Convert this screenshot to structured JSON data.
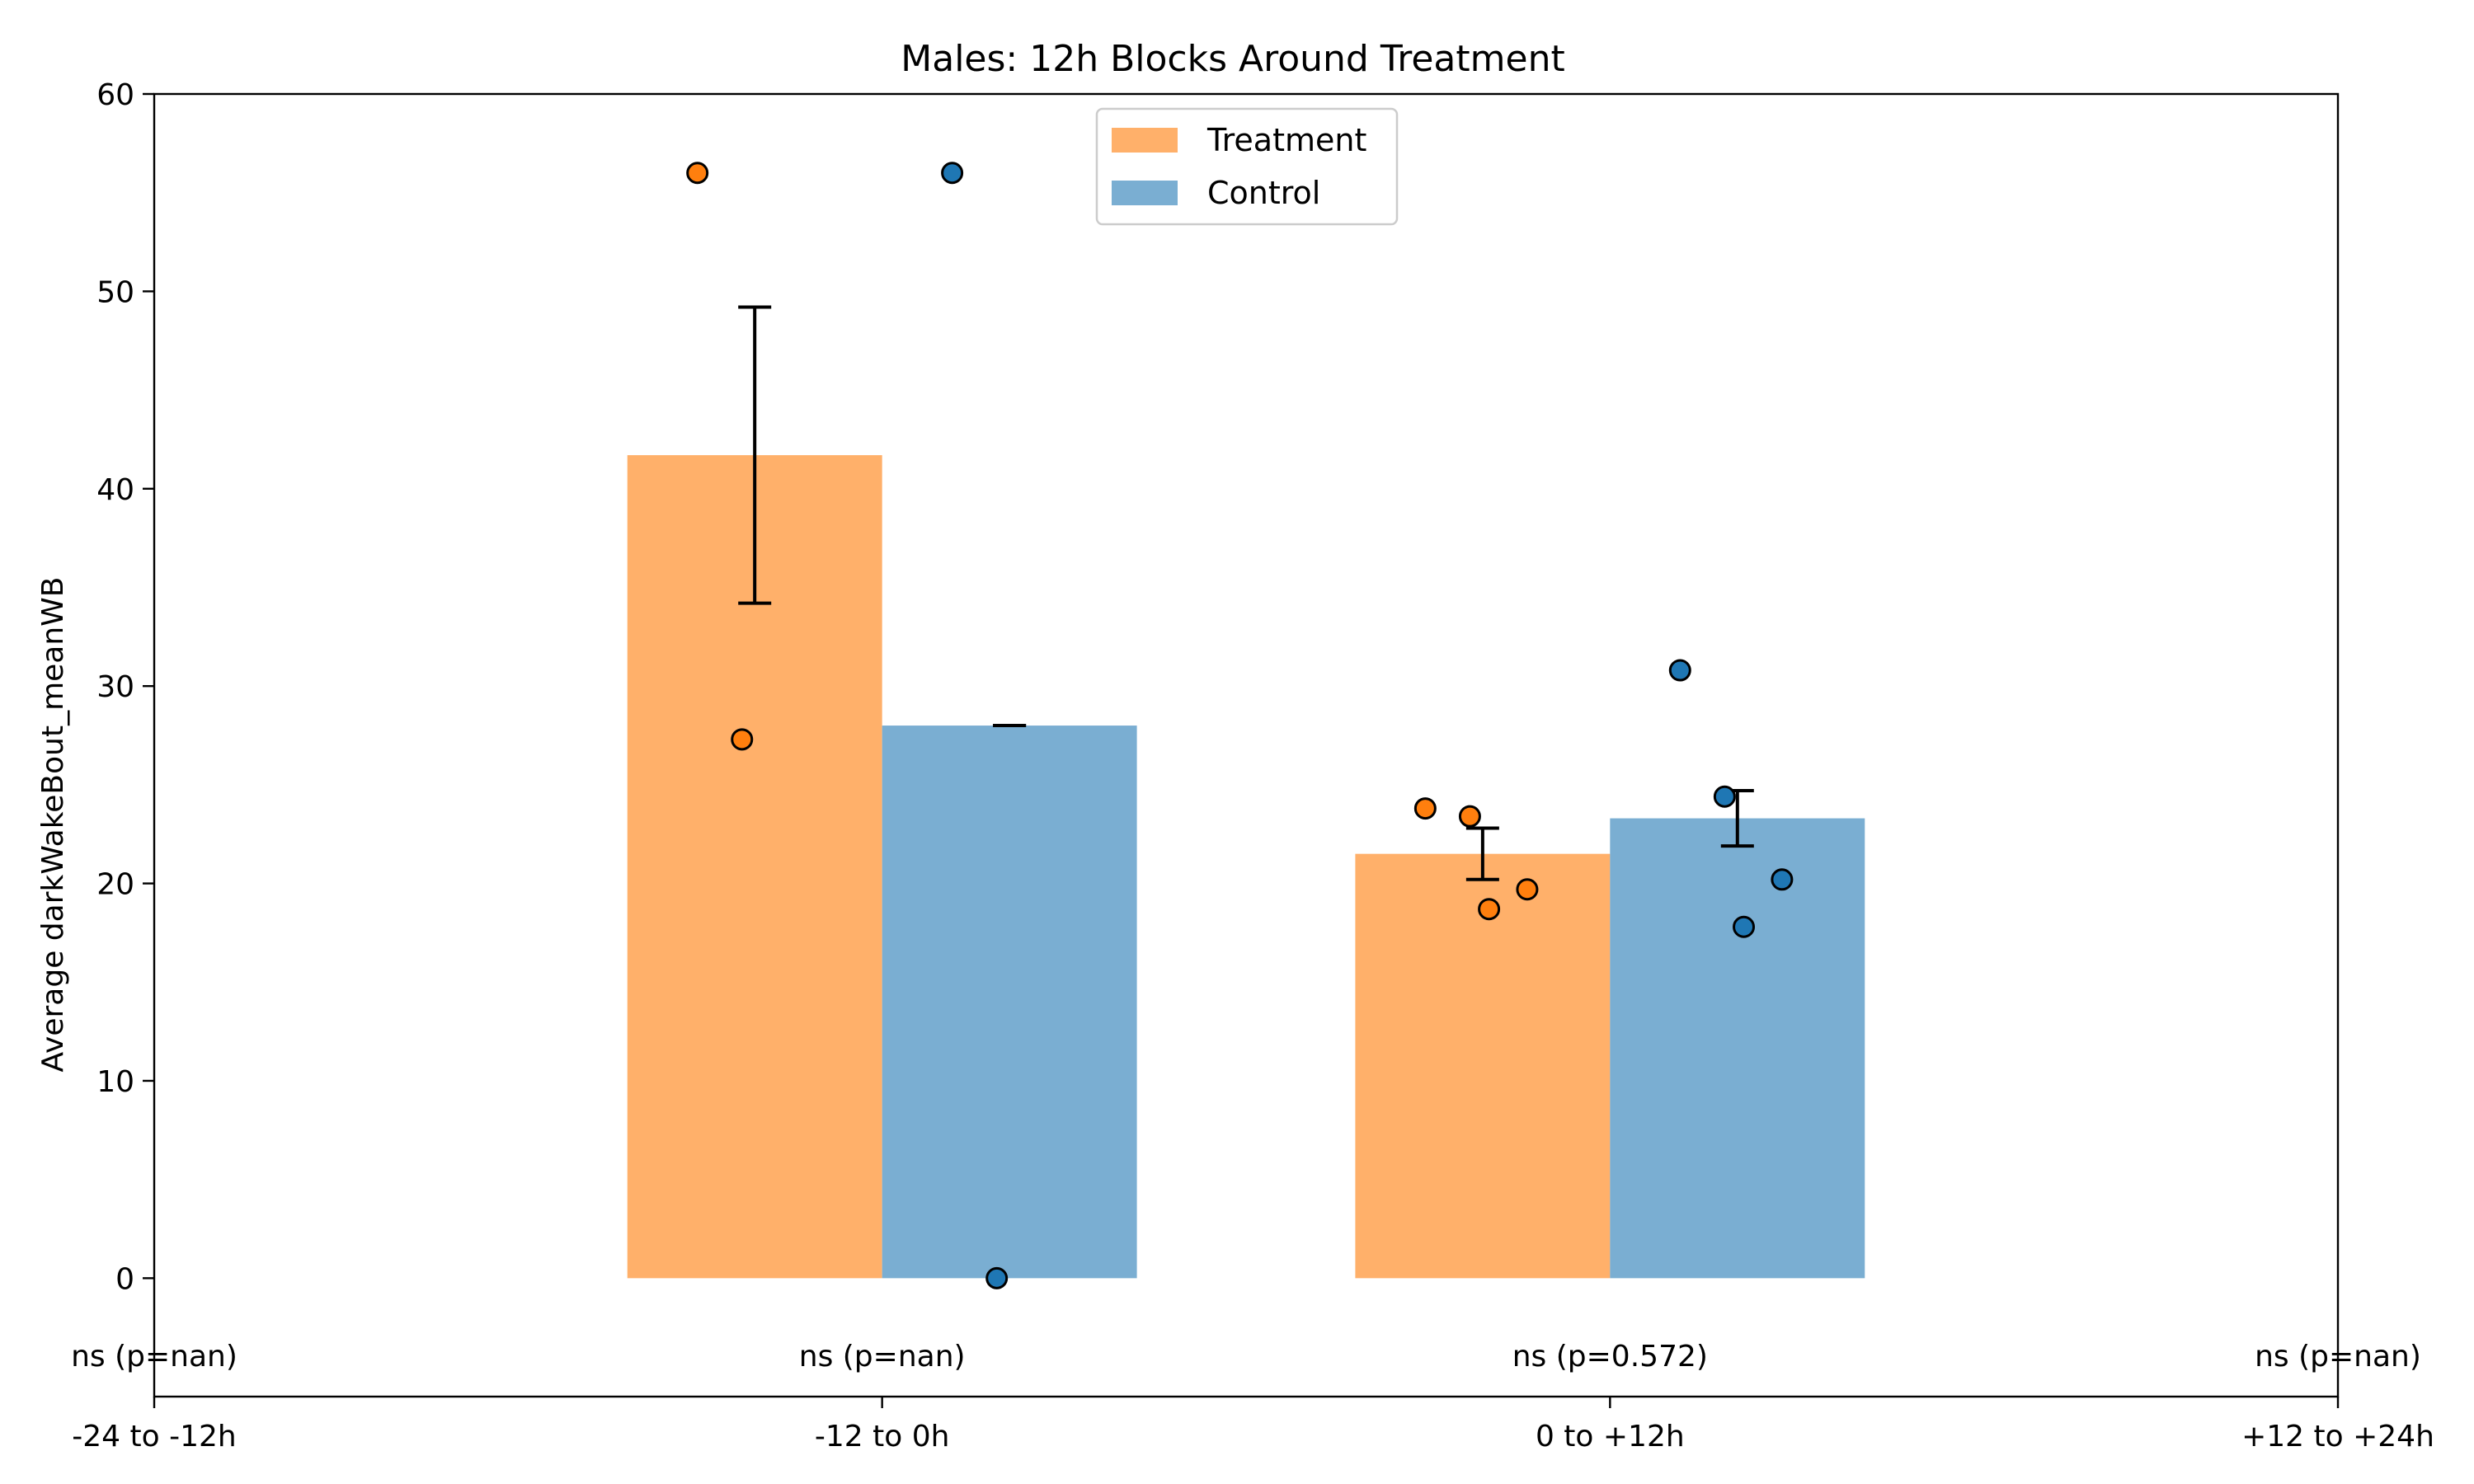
{
  "chart_data": {
    "type": "bar",
    "title": "Males: 12h Blocks Around Treatment",
    "xlabel": "",
    "ylabel": "Average darkWakeBout_meanWB",
    "ylim": [
      -6,
      60
    ],
    "yticks": [
      0,
      10,
      20,
      30,
      40,
      50,
      60
    ],
    "grid": false,
    "legend_position": "top-center",
    "categories": [
      "-24 to -12h",
      "-12 to 0h",
      "0 to +12h",
      "+12 to +24h"
    ],
    "series": [
      {
        "name": "Treatment",
        "color": "#ffb06a",
        "point_color": "#ff7f0e",
        "values": [
          null,
          41.7,
          21.5,
          null
        ],
        "error": [
          null,
          7.5,
          1.3,
          null
        ],
        "points": [
          [],
          [
            56.0,
            27.3
          ],
          [
            23.8,
            23.4,
            19.7,
            18.7
          ],
          []
        ]
      },
      {
        "name": "Control",
        "color": "#7aaed2",
        "point_color": "#1f77b4",
        "values": [
          null,
          28.0,
          23.3,
          null
        ],
        "error": [
          null,
          0.0,
          1.4,
          null
        ],
        "points": [
          [],
          [
            56.0,
            0.0
          ],
          [
            30.8,
            24.4,
            20.2,
            17.8
          ],
          []
        ]
      }
    ],
    "annotations": [
      "ns (p=nan)",
      "ns (p=nan)",
      "ns (p=0.572)",
      "ns (p=nan)"
    ]
  }
}
